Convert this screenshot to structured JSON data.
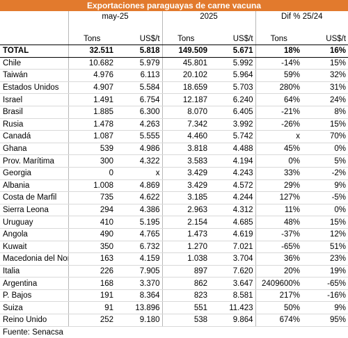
{
  "title": "Exportaciones paraguayas de carne vacuna",
  "groups": [
    "may-25",
    "2025",
    "Dif % 25/24"
  ],
  "units": [
    "Tons",
    "US$/t",
    "Tons",
    "US$/t",
    "Tons",
    "US$/t"
  ],
  "total": {
    "name": "TOTAL",
    "values": [
      "32.511",
      "5.818",
      "149.509",
      "5.671",
      "18%",
      "16%"
    ]
  },
  "rows": [
    {
      "name": "Chile",
      "values": [
        "10.682",
        "5.979",
        "45.801",
        "5.992",
        "-14%",
        "15%"
      ]
    },
    {
      "name": "Taiwán",
      "values": [
        "4.976",
        "6.113",
        "20.102",
        "5.964",
        "59%",
        "32%"
      ]
    },
    {
      "name": "Estados Unidos",
      "values": [
        "4.907",
        "5.584",
        "18.659",
        "5.703",
        "280%",
        "31%"
      ]
    },
    {
      "name": "Israel",
      "values": [
        "1.491",
        "6.754",
        "12.187",
        "6.240",
        "64%",
        "24%"
      ]
    },
    {
      "name": "Brasil",
      "values": [
        "1.885",
        "6.300",
        "8.070",
        "6.405",
        "-21%",
        "8%"
      ]
    },
    {
      "name": "Rusia",
      "values": [
        "1.478",
        "4.263",
        "7.342",
        "3.992",
        "-26%",
        "15%"
      ]
    },
    {
      "name": "Canadá",
      "values": [
        "1.087",
        "5.555",
        "4.460",
        "5.742",
        "x",
        "70%"
      ]
    },
    {
      "name": "Ghana",
      "values": [
        "539",
        "4.986",
        "3.818",
        "4.488",
        "45%",
        "0%"
      ]
    },
    {
      "name": "Prov. Marítima",
      "values": [
        "300",
        "4.322",
        "3.583",
        "4.194",
        "0%",
        "5%"
      ]
    },
    {
      "name": "Georgia",
      "values": [
        "0",
        "x",
        "3.429",
        "4.243",
        "33%",
        "-2%"
      ]
    },
    {
      "name": "Albania",
      "values": [
        "1.008",
        "4.869",
        "3.429",
        "4.572",
        "29%",
        "9%"
      ]
    },
    {
      "name": "Costa de Marfil",
      "values": [
        "735",
        "4.622",
        "3.185",
        "4.244",
        "127%",
        "-5%"
      ]
    },
    {
      "name": "Sierra Leona",
      "values": [
        "294",
        "4.386",
        "2.963",
        "4.312",
        "11%",
        "0%"
      ]
    },
    {
      "name": "Uruguay",
      "values": [
        "410",
        "5.195",
        "2.154",
        "4.685",
        "48%",
        "15%"
      ]
    },
    {
      "name": "Angola",
      "values": [
        "490",
        "4.765",
        "1.473",
        "4.619",
        "-37%",
        "12%"
      ]
    },
    {
      "name": "Kuwait",
      "values": [
        "350",
        "6.732",
        "1.270",
        "7.021",
        "-65%",
        "51%"
      ]
    },
    {
      "name": "Macedonia del Nor",
      "values": [
        "163",
        "4.159",
        "1.038",
        "3.704",
        "36%",
        "23%"
      ]
    },
    {
      "name": "Italia",
      "values": [
        "226",
        "7.905",
        "897",
        "7.620",
        "20%",
        "19%"
      ]
    },
    {
      "name": "Argentina",
      "values": [
        "168",
        "3.370",
        "862",
        "3.647",
        "2409600%",
        "-65%"
      ]
    },
    {
      "name": "P. Bajos",
      "values": [
        "191",
        "8.364",
        "823",
        "8.581",
        "217%",
        "-16%"
      ]
    },
    {
      "name": "Suiza",
      "values": [
        "91",
        "13.896",
        "551",
        "11.423",
        "50%",
        "9%"
      ]
    },
    {
      "name": "Reino Unido",
      "values": [
        "252",
        "9.180",
        "538",
        "9.864",
        "674%",
        "95%"
      ]
    }
  ],
  "source": "Fuente: Senacsa",
  "colors": {
    "title_bg": "#e27a2d",
    "title_text": "#ffffff"
  }
}
